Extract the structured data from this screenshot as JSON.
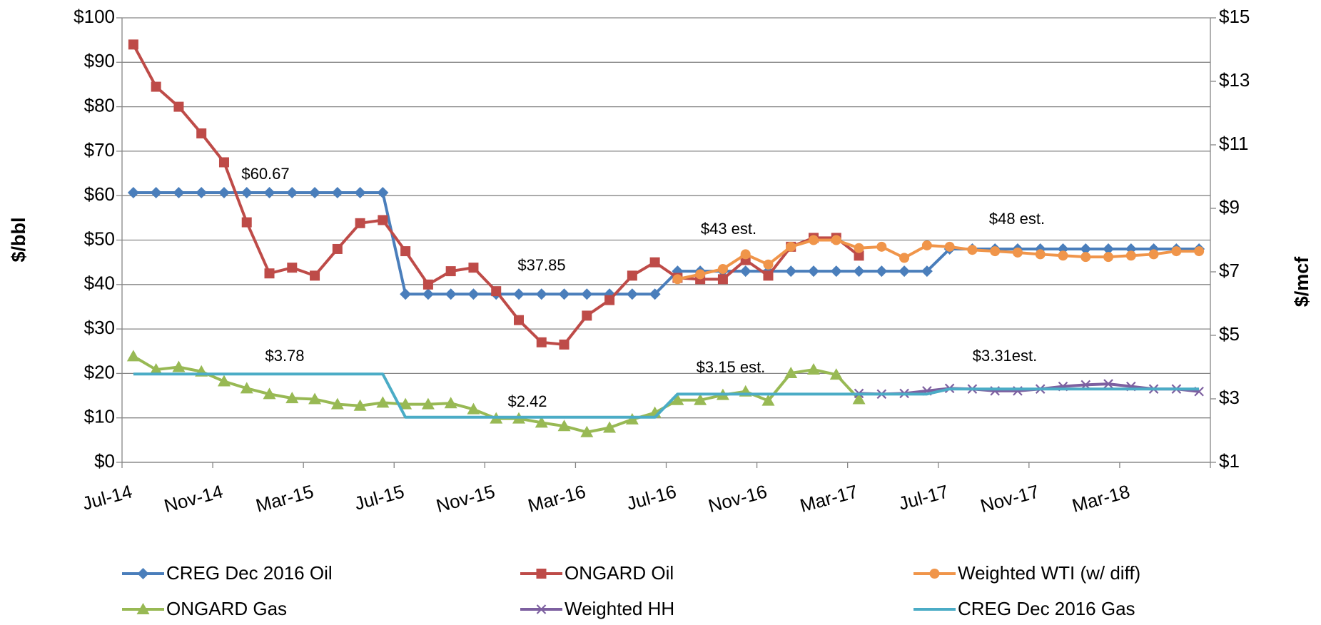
{
  "chart_data": {
    "type": "line",
    "y_label": "$/bbl",
    "y2_label": "$/mcf",
    "categories": [
      "Jul-14",
      null,
      null,
      null,
      "Nov-14",
      null,
      null,
      null,
      "Mar-15",
      null,
      null,
      null,
      "Jul-15",
      null,
      null,
      null,
      "Nov-15",
      null,
      null,
      null,
      "Mar-16",
      null,
      null,
      null,
      "Jul-16",
      null,
      null,
      null,
      "Nov-16",
      null,
      null,
      null,
      "Mar-17",
      null,
      null,
      null,
      "Jul-17",
      null,
      null,
      null,
      "Nov-17",
      null,
      null,
      null,
      "Mar-18",
      null,
      null,
      null
    ],
    "ylim": [
      0,
      100
    ],
    "yticks": [
      {
        "value": 0,
        "label": "$0"
      },
      {
        "value": 10,
        "label": "$10"
      },
      {
        "value": 20,
        "label": "$20"
      },
      {
        "value": 30,
        "label": "$30"
      },
      {
        "value": 40,
        "label": "$40"
      },
      {
        "value": 50,
        "label": "$50"
      },
      {
        "value": 60,
        "label": "$60"
      },
      {
        "value": 70,
        "label": "$70"
      },
      {
        "value": 80,
        "label": "$80"
      },
      {
        "value": 90,
        "label": "$90"
      },
      {
        "value": 100,
        "label": "$100"
      }
    ],
    "y2lim": [
      1,
      15
    ],
    "y2ticks": [
      {
        "value": 1,
        "label": "$1"
      },
      {
        "value": 3,
        "label": "$3"
      },
      {
        "value": 5,
        "label": "$5"
      },
      {
        "value": 7,
        "label": "$7"
      },
      {
        "value": 9,
        "label": "$9"
      },
      {
        "value": 11,
        "label": "$11"
      },
      {
        "value": 13,
        "label": "$13"
      },
      {
        "value": 15,
        "label": "$15"
      }
    ],
    "grid": true,
    "legend": "bottom",
    "series": [
      {
        "name": "CREG Dec 2016 Oil",
        "color": "#4a7ebb",
        "marker": "diamond",
        "values": [
          60.67,
          60.67,
          60.67,
          60.67,
          60.67,
          60.67,
          60.67,
          60.67,
          60.67,
          60.67,
          60.67,
          60.67,
          37.85,
          37.85,
          37.85,
          37.85,
          37.85,
          37.85,
          37.85,
          37.85,
          37.85,
          37.85,
          37.85,
          37.85,
          43,
          43,
          43,
          43,
          43,
          43,
          43,
          43,
          43,
          43,
          43,
          43,
          48,
          48,
          48,
          48,
          48,
          48,
          48,
          48,
          48,
          48,
          48,
          48
        ]
      },
      {
        "name": "ONGARD Oil",
        "color": "#be4b48",
        "marker": "square",
        "values": [
          94,
          84.5,
          80,
          74,
          67.5,
          54,
          42.5,
          43.8,
          42,
          48,
          53.8,
          54.5,
          47.5,
          40,
          43,
          43.8,
          38.5,
          32,
          27,
          26.5,
          33,
          36.5,
          42,
          45,
          41.5,
          41.2,
          41.2,
          45.5,
          42,
          48.5,
          50.5,
          50.5,
          46.5,
          null,
          null,
          null,
          null,
          null,
          null,
          null,
          null,
          null,
          null,
          null,
          null,
          null,
          null,
          null
        ]
      },
      {
        "name": "Weighted WTI (w/ diff)",
        "color": "#f0954a",
        "marker": "circle",
        "values": [
          null,
          null,
          null,
          null,
          null,
          null,
          null,
          null,
          null,
          null,
          null,
          null,
          null,
          null,
          null,
          null,
          null,
          null,
          null,
          null,
          null,
          null,
          null,
          null,
          41.2,
          42.3,
          43.5,
          46.8,
          44.5,
          48.5,
          50,
          50,
          48.2,
          48.5,
          46,
          48.8,
          48.5,
          47.8,
          47.5,
          47.2,
          46.8,
          46.5,
          46.2,
          46.2,
          46.5,
          46.8,
          47.5,
          47.5
        ]
      },
      {
        "name": "ONGARD Gas",
        "color": "#98b954",
        "marker": "triangle",
        "axis": "y2",
        "values": [
          4.34,
          3.92,
          4.0,
          3.86,
          3.55,
          3.33,
          3.15,
          3.02,
          2.99,
          2.83,
          2.78,
          2.88,
          2.83,
          2.83,
          2.86,
          2.67,
          2.38,
          2.38,
          2.25,
          2.14,
          1.95,
          2.09,
          2.35,
          2.56,
          2.96,
          2.96,
          3.12,
          3.23,
          2.94,
          3.81,
          3.92,
          3.76,
          2.99,
          null,
          null,
          null,
          null,
          null,
          null,
          null,
          null,
          null,
          null,
          null,
          null,
          null,
          null,
          null
        ]
      },
      {
        "name": "Weighted HH",
        "color": "#7d60a0",
        "marker": "x",
        "axis": "y2",
        "values": [
          null,
          null,
          null,
          null,
          null,
          null,
          null,
          null,
          null,
          null,
          null,
          null,
          null,
          null,
          null,
          null,
          null,
          null,
          null,
          null,
          null,
          null,
          null,
          null,
          null,
          null,
          null,
          null,
          null,
          null,
          null,
          null,
          3.17,
          3.15,
          3.17,
          3.25,
          3.33,
          3.31,
          3.25,
          3.25,
          3.31,
          3.39,
          3.44,
          3.47,
          3.39,
          3.31,
          3.31,
          3.23
        ]
      },
      {
        "name": "CREG Dec 2016 Gas",
        "color": "#4bacc6",
        "marker": "none",
        "axis": "y2",
        "values": [
          3.78,
          3.78,
          3.78,
          3.78,
          3.78,
          3.78,
          3.78,
          3.78,
          3.78,
          3.78,
          3.78,
          3.78,
          2.42,
          2.42,
          2.42,
          2.42,
          2.42,
          2.42,
          2.42,
          2.42,
          2.42,
          2.42,
          2.42,
          2.42,
          3.15,
          3.15,
          3.15,
          3.15,
          3.15,
          3.15,
          3.15,
          3.15,
          3.15,
          3.15,
          3.15,
          3.15,
          3.31,
          3.31,
          3.31,
          3.31,
          3.31,
          3.31,
          3.31,
          3.31,
          3.31,
          3.31,
          3.31,
          3.31
        ]
      }
    ],
    "annotations": [
      "$60.67",
      "$37.85",
      "$43 est.",
      "$48 est.",
      "$3.78",
      "$2.42",
      "$3.15 est.",
      "$3.31est."
    ]
  }
}
